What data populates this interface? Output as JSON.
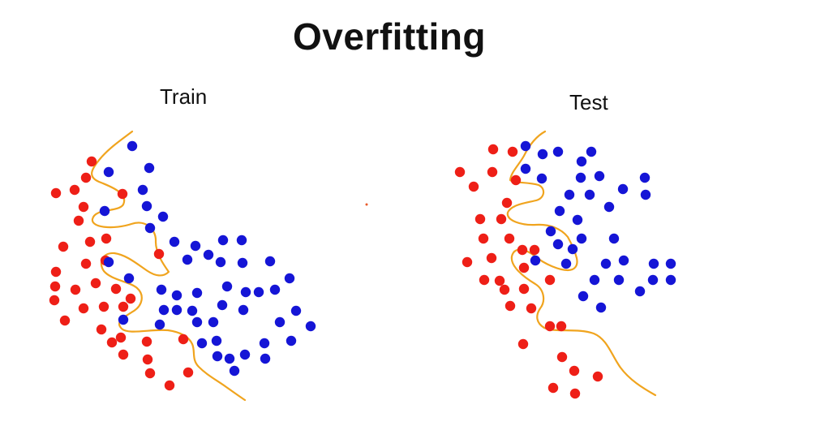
{
  "title": "Overfitting",
  "panels": [
    {
      "label": "Train"
    },
    {
      "label": "Test"
    }
  ],
  "colors": {
    "class_a": "#ee1f17",
    "class_b": "#1515d6",
    "boundary": "#f0a41e",
    "background": "#ffffff"
  }
}
